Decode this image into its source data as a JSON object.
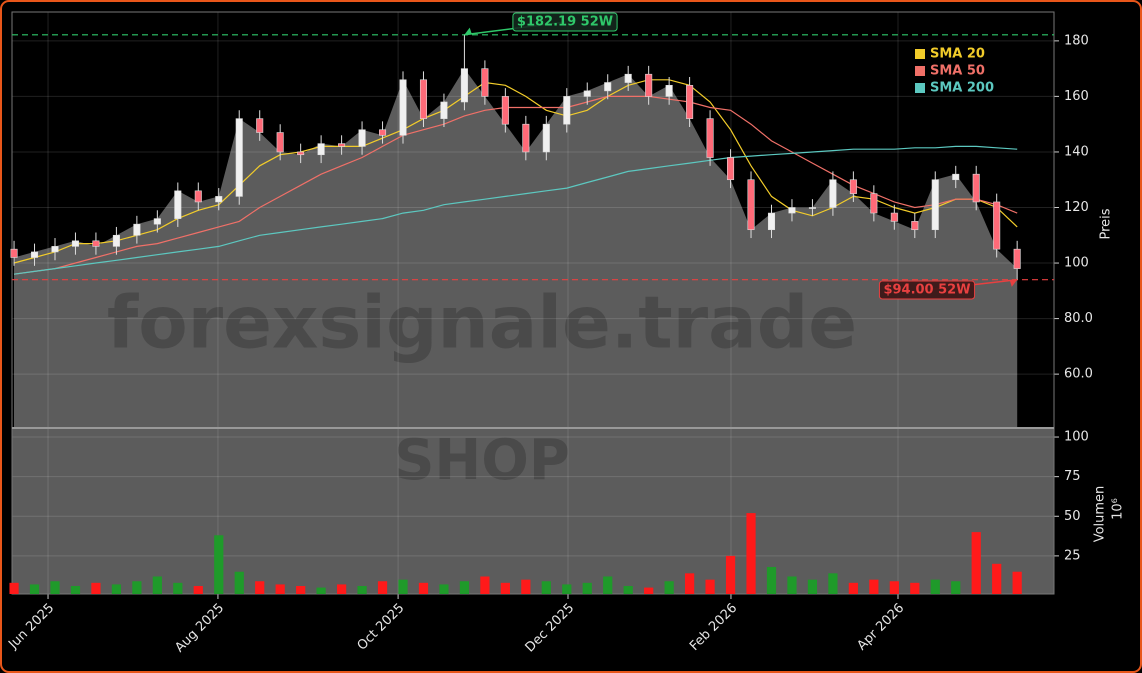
{
  "chart_data": {
    "type": "candlestick",
    "symbol": "SHOP",
    "watermark": "forexsignale.trade",
    "y_label": "Preis",
    "y2_label": "Volumen",
    "y2_scale_label": "10⁶",
    "x": [
      0,
      1,
      2,
      3,
      4,
      5,
      6,
      7,
      8,
      9,
      10,
      11,
      12,
      13,
      14,
      15,
      16,
      17,
      18,
      19,
      20,
      21,
      22,
      23,
      24,
      25,
      26,
      27,
      28,
      29,
      30,
      31,
      32,
      33,
      34,
      35,
      36,
      37,
      38,
      39,
      40,
      41,
      42,
      43,
      44,
      45,
      46,
      47,
      48,
      49
    ],
    "xlim": [
      -0.1,
      50.8
    ],
    "xticks": [
      {
        "value": 1.66,
        "label": "Jun 2025"
      },
      {
        "value": 9.96,
        "label": "Aug 2025"
      },
      {
        "value": 18.76,
        "label": "Oct 2025"
      },
      {
        "value": 27.06,
        "label": "Dec 2025"
      },
      {
        "value": 35.02,
        "label": "Feb 2026"
      },
      {
        "value": 43.18,
        "label": "Apr 2026"
      }
    ],
    "open": [
      105,
      102,
      104,
      106,
      108,
      106,
      110,
      114,
      116,
      126,
      122,
      124,
      152,
      147,
      140,
      139,
      143,
      142,
      148,
      146,
      166,
      152,
      158,
      170,
      160,
      150,
      140,
      150,
      160,
      162,
      165,
      168,
      160,
      164,
      152,
      138,
      130,
      112,
      118,
      120,
      120,
      130,
      125,
      118,
      115,
      112,
      130,
      132,
      122,
      105
    ],
    "high": [
      108,
      107,
      109,
      111,
      111,
      113,
      117,
      119,
      129,
      129,
      127,
      155,
      155,
      150,
      143,
      146,
      146,
      151,
      151,
      169,
      169,
      161,
      182.19,
      173,
      163,
      153,
      153,
      163,
      165,
      168,
      171,
      171,
      167,
      167,
      155,
      141,
      133,
      121,
      123,
      123,
      133,
      133,
      128,
      121,
      118,
      133,
      135,
      135,
      125,
      108
    ],
    "low": [
      99,
      99,
      101,
      103,
      103,
      103,
      107,
      111,
      113,
      119,
      119,
      121,
      144,
      137,
      136,
      136,
      139,
      139,
      143,
      143,
      149,
      149,
      155,
      157,
      147,
      137,
      137,
      147,
      157,
      159,
      162,
      157,
      157,
      149,
      135,
      127,
      109,
      109,
      115,
      117,
      117,
      122,
      115,
      112,
      109,
      109,
      127,
      119,
      102,
      94
    ],
    "close": [
      102,
      104,
      106,
      108,
      106,
      110,
      114,
      116,
      126,
      122,
      124,
      152,
      147,
      140,
      139,
      143,
      142,
      148,
      146,
      166,
      152,
      158,
      170,
      160,
      150,
      140,
      150,
      160,
      162,
      165,
      168,
      160,
      164,
      152,
      138,
      130,
      112,
      118,
      120,
      120,
      130,
      125,
      118,
      115,
      112,
      130,
      132,
      122,
      105,
      98
    ],
    "volume": [
      8,
      7,
      9,
      6,
      8,
      7,
      9,
      12,
      8,
      6,
      38,
      15,
      9,
      7,
      6,
      5,
      7,
      6,
      9,
      10,
      8,
      7,
      9,
      12,
      8,
      10,
      9,
      7,
      8,
      12,
      6,
      5,
      9,
      14,
      10,
      25,
      52,
      18,
      12,
      10,
      14,
      8,
      10,
      9,
      8,
      10,
      9,
      40,
      20,
      15
    ],
    "up_color": "#1f9a2a",
    "down_color": "#ff1a1a",
    "area_color": "#5c5c5c",
    "sma": [
      {
        "name": "SMA 20",
        "color": "#f2cc2a",
        "values": [
          100,
          102,
          104,
          107,
          107,
          108,
          110,
          112,
          116,
          119,
          121,
          128,
          135,
          139,
          140,
          142,
          142,
          142,
          145,
          148,
          152,
          155,
          160,
          165,
          164,
          160,
          155,
          153,
          155,
          160,
          164,
          166,
          166,
          164,
          158,
          148,
          135,
          124,
          119,
          117,
          120,
          124,
          123,
          120,
          118,
          120,
          123,
          123,
          120,
          113
        ]
      },
      {
        "name": "SMA 50",
        "color": "#f07068",
        "values": [
          96,
          97,
          98,
          100,
          102,
          104,
          106,
          107,
          109,
          111,
          113,
          115,
          120,
          124,
          128,
          132,
          135,
          138,
          142,
          146,
          148,
          150,
          153,
          155,
          156,
          156,
          156,
          156,
          158,
          160,
          160,
          160,
          159,
          158,
          156,
          155,
          150,
          144,
          140,
          136,
          132,
          128,
          125,
          122,
          120,
          121,
          123,
          123,
          121,
          118
        ]
      },
      {
        "name": "SMA 200",
        "color": "#5cc8c0",
        "values": [
          96,
          97,
          98,
          99,
          100,
          101,
          102,
          103,
          104,
          105,
          106,
          108,
          110,
          111,
          112,
          113,
          114,
          115,
          116,
          118,
          119,
          121,
          122,
          123,
          124,
          125,
          126,
          127,
          129,
          131,
          133,
          134,
          135,
          136,
          137,
          138,
          138.5,
          139,
          139.5,
          140,
          140.5,
          141,
          141,
          141,
          141.5,
          141.5,
          142,
          142,
          141.5,
          141
        ]
      }
    ],
    "ylim": [
      40.6,
      190.4
    ],
    "yticks": [
      {
        "value": 60,
        "label": "60.0"
      },
      {
        "value": 80,
        "label": "80.0"
      },
      100,
      120,
      140,
      160,
      180
    ],
    "y2lim": [
      0.95,
      105.7
    ],
    "y2ticks": [
      25,
      50,
      75,
      100
    ],
    "grid": true,
    "legend": "upper right",
    "high_52w": {
      "value": 182.19,
      "label": "$182.19 52W",
      "color": "#2fc86a"
    },
    "low_52w": {
      "value": 94.0,
      "label": "$94.00 52W",
      "color": "#e84040"
    }
  }
}
